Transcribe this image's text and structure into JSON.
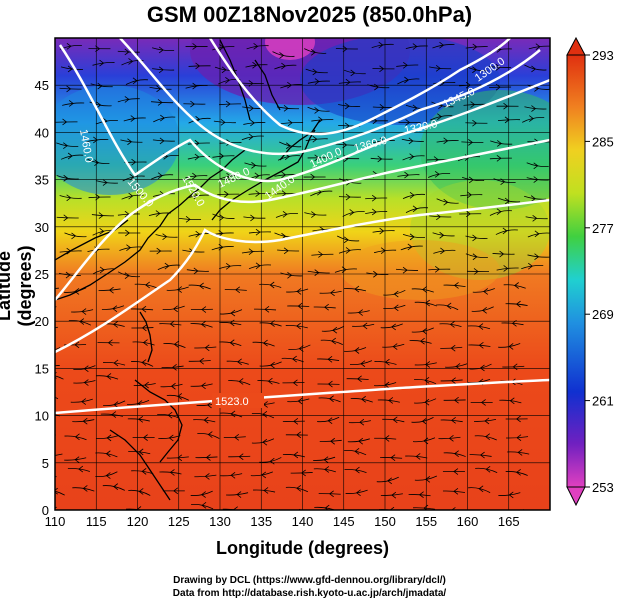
{
  "title": "GSM 00Z18Nov2025 (850.0hPa)",
  "axes": {
    "xlabel": "Longitude (degrees)",
    "ylabel": "Latitude  (degrees)",
    "xticks": [
      "110",
      "115",
      "120",
      "125",
      "130",
      "135",
      "140",
      "145",
      "150",
      "155",
      "160",
      "165"
    ],
    "yticks": [
      "0",
      "5",
      "10",
      "15",
      "20",
      "25",
      "30",
      "35",
      "40",
      "45"
    ],
    "xlim": [
      110,
      170
    ],
    "ylim": [
      0,
      50
    ]
  },
  "colorbar": {
    "ticks": [
      "253",
      "261",
      "269",
      "277",
      "285",
      "293"
    ],
    "range": [
      253,
      293
    ],
    "colors": [
      "#e040c0",
      "#7020c0",
      "#1030d0",
      "#2090e0",
      "#20d0d0",
      "#40d040",
      "#c0e020",
      "#f0d020",
      "#f08020",
      "#e03010"
    ]
  },
  "contours": {
    "label_1523_low": "1523.0",
    "label_1520": "1520.0",
    "label_1500": "1500.0",
    "label_1480": "1480.0",
    "label_1460_w": "1460.0",
    "label_1440": "1440.0",
    "label_1400": "1400.0",
    "label_1360": "1360.0",
    "label_1320": "1320.0",
    "label_1345": "1345.0",
    "label_1300_ne": "1300.0"
  },
  "credits": {
    "line1": "Drawing by DCL (https://www.gfd-dennou.org/library/dcl/)",
    "line2": "Data from http://database.rish.kyoto-u.ac.jp/arch/jmadata/"
  }
}
